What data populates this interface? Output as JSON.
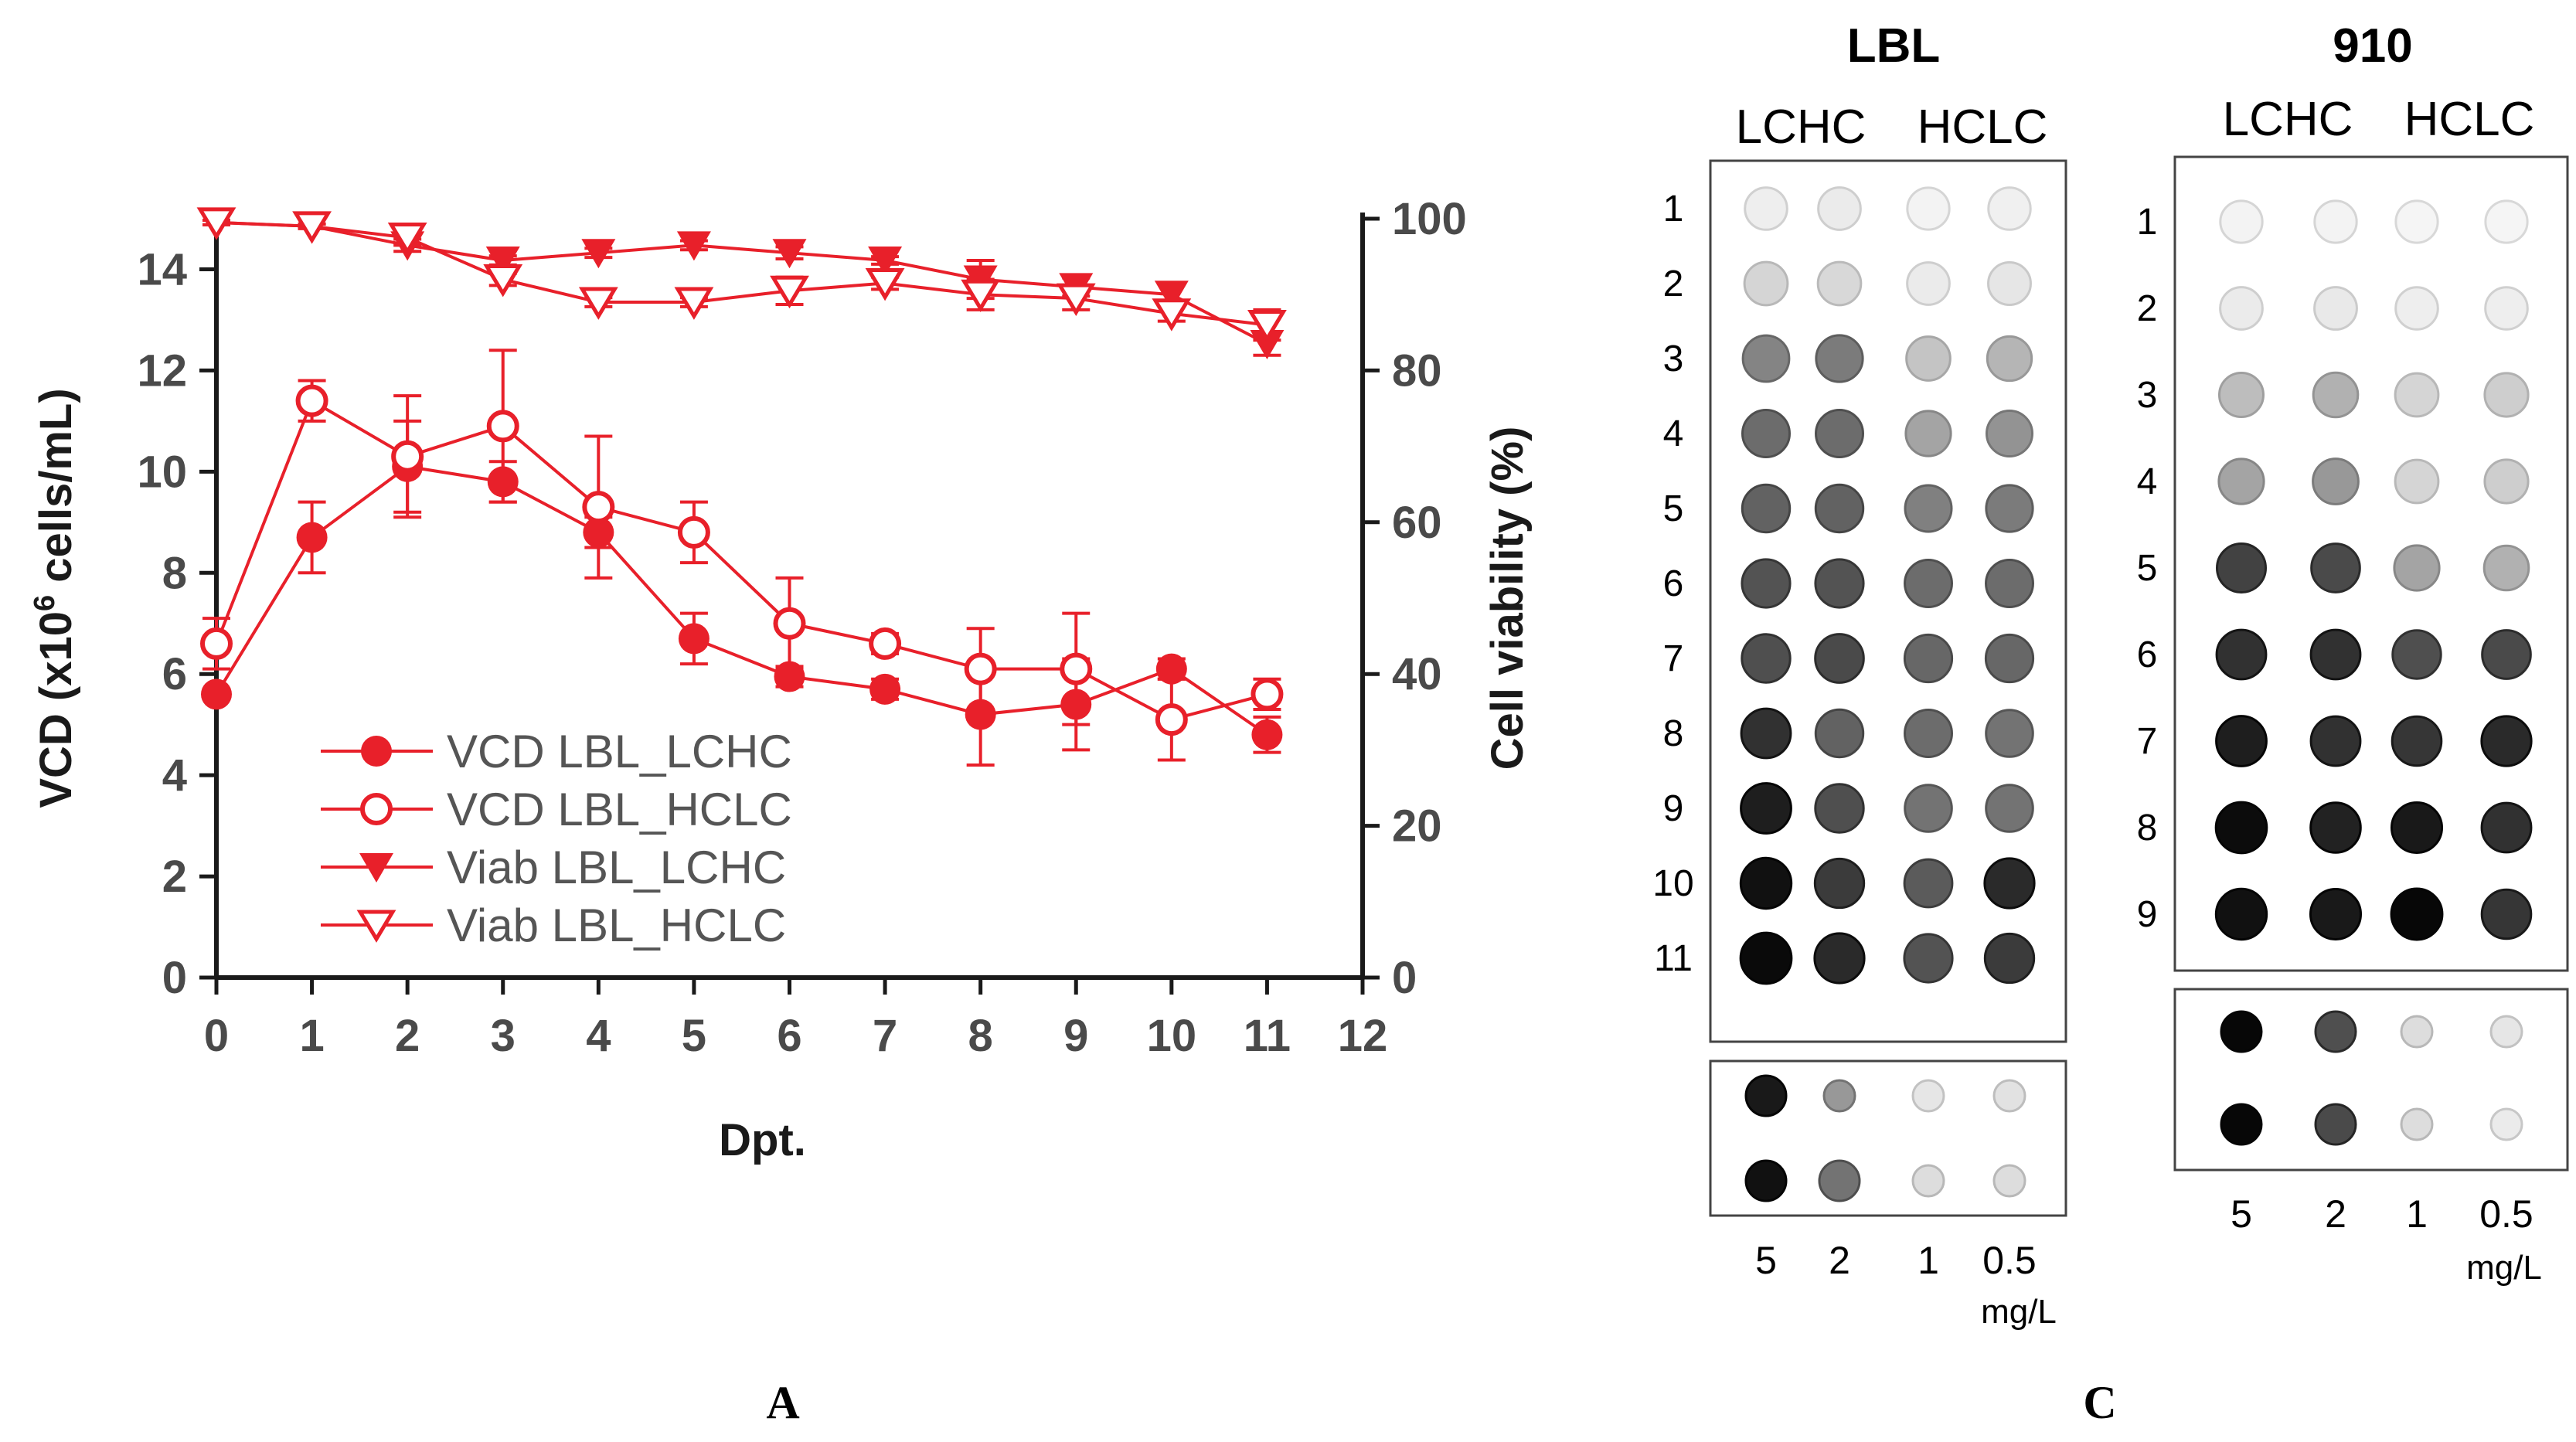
{
  "chart_data": [
    {
      "type": "line",
      "panel_label": "A",
      "xlabel": "Dpt.",
      "ylabel_left_parts": [
        "VCD (x10",
        "6",
        " cells/mL)"
      ],
      "ylabel_right": "Cell viability (%)",
      "xlim": [
        0,
        12
      ],
      "ylim_left": [
        0,
        15
      ],
      "ylim_right": [
        0,
        100
      ],
      "x_ticks": [
        "0",
        "1",
        "2",
        "3",
        "4",
        "5",
        "6",
        "7",
        "8",
        "9",
        "10",
        "11",
        "12"
      ],
      "y_left_ticks": [
        "0",
        "2",
        "4",
        "6",
        "8",
        "10",
        "12",
        "14"
      ],
      "y_right_ticks": [
        "0",
        "20",
        "40",
        "60",
        "80",
        "100"
      ],
      "series": [
        {
          "name": "VCD LBL_LCHC",
          "axis": "left",
          "marker": "filled-circle",
          "x": [
            0,
            1,
            2,
            3,
            4,
            5,
            6,
            7,
            8,
            9,
            10,
            11
          ],
          "y": [
            5.6,
            8.7,
            10.1,
            9.8,
            8.8,
            6.7,
            5.95,
            5.7,
            5.2,
            5.4,
            6.1,
            4.8
          ],
          "err": [
            0.1,
            0.7,
            0.9,
            0.4,
            0.3,
            0.5,
            0.2,
            0.2,
            1.0,
            0.9,
            0.2,
            0.35
          ]
        },
        {
          "name": "VCD LBL_HCLC",
          "axis": "left",
          "marker": "open-circle",
          "x": [
            0,
            1,
            2,
            3,
            4,
            5,
            6,
            7,
            8,
            9,
            10,
            11
          ],
          "y": [
            6.6,
            11.4,
            10.3,
            10.9,
            9.3,
            8.8,
            7.0,
            6.6,
            6.1,
            6.1,
            5.1,
            5.6
          ],
          "err": [
            0.5,
            0.4,
            1.2,
            1.5,
            1.4,
            0.6,
            0.9,
            0.2,
            0.8,
            1.1,
            0.8,
            0.3
          ]
        },
        {
          "name": "Viab LBL_LCHC",
          "axis": "right",
          "marker": "filled-triangle-down",
          "x": [
            0,
            1,
            2,
            3,
            4,
            5,
            6,
            7,
            8,
            9,
            10,
            11
          ],
          "y": [
            99.5,
            99.0,
            96.5,
            94.5,
            95.5,
            96.5,
            95.5,
            94.5,
            92.0,
            91.0,
            90.0,
            83.5
          ],
          "err": [
            0.3,
            0.3,
            0.8,
            0.6,
            0.6,
            0.6,
            0.8,
            0.5,
            2.5,
            1.2,
            1.5,
            1.5
          ]
        },
        {
          "name": "Viab LBL_HCLC",
          "axis": "right",
          "marker": "open-triangle-down",
          "x": [
            0,
            1,
            2,
            3,
            4,
            5,
            6,
            7,
            8,
            9,
            10,
            11
          ],
          "y": [
            99.5,
            99.0,
            97.5,
            92.0,
            89.0,
            89.0,
            90.5,
            91.5,
            90.0,
            89.5,
            87.5,
            86.0
          ],
          "err": [
            0.3,
            0.3,
            1.0,
            0.8,
            0.6,
            0.6,
            1.8,
            0.8,
            2.0,
            1.5,
            1.0,
            2.0
          ]
        }
      ],
      "colors": {
        "series": "#e8202a",
        "axis": "#1a1a1a",
        "tick_text": "#4a4a4a"
      }
    }
  ],
  "blots": {
    "panel_label": "C",
    "conc_labels": [
      "5",
      "2",
      "1",
      "0.5"
    ],
    "unit": "mg/L",
    "panels": [
      {
        "title": "LBL",
        "groups": [
          "LCHC",
          "HCLC"
        ],
        "row_labels": [
          "1",
          "2",
          "3",
          "4",
          "5",
          "6",
          "7",
          "8",
          "9",
          "10",
          "11"
        ],
        "intensity": [
          [
            0.05,
            0.06,
            0.03,
            0.04
          ],
          [
            0.15,
            0.14,
            0.06,
            0.08
          ],
          [
            0.48,
            0.52,
            0.22,
            0.28
          ],
          [
            0.58,
            0.58,
            0.35,
            0.42
          ],
          [
            0.62,
            0.62,
            0.5,
            0.52
          ],
          [
            0.68,
            0.68,
            0.58,
            0.58
          ],
          [
            0.7,
            0.72,
            0.6,
            0.6
          ],
          [
            0.82,
            0.62,
            0.58,
            0.55
          ],
          [
            0.9,
            0.7,
            0.55,
            0.55
          ],
          [
            0.95,
            0.78,
            0.65,
            0.85
          ],
          [
            0.98,
            0.85,
            0.68,
            0.78
          ]
        ],
        "standards": [
          [
            0.92,
            0.4,
            0.08,
            0.1
          ],
          [
            0.95,
            0.55,
            0.12,
            0.12
          ]
        ]
      },
      {
        "title": "910",
        "groups": [
          "LCHC",
          "HCLC"
        ],
        "row_labels": [
          "1",
          "2",
          "3",
          "4",
          "5",
          "6",
          "7",
          "8",
          "9"
        ],
        "intensity": [
          [
            0.03,
            0.03,
            0.02,
            0.02
          ],
          [
            0.06,
            0.07,
            0.05,
            0.05
          ],
          [
            0.25,
            0.3,
            0.15,
            0.18
          ],
          [
            0.35,
            0.4,
            0.15,
            0.18
          ],
          [
            0.75,
            0.72,
            0.35,
            0.3
          ],
          [
            0.82,
            0.82,
            0.7,
            0.72
          ],
          [
            0.9,
            0.82,
            0.8,
            0.85
          ],
          [
            0.97,
            0.88,
            0.92,
            0.82
          ],
          [
            0.95,
            0.92,
            0.99,
            0.8
          ]
        ],
        "standards": [
          [
            0.99,
            0.7,
            0.12,
            0.08
          ],
          [
            0.99,
            0.72,
            0.12,
            0.06
          ]
        ]
      }
    ]
  }
}
